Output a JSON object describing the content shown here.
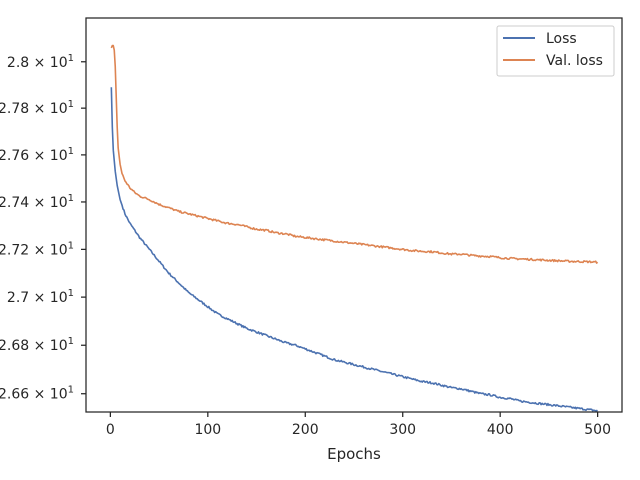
{
  "chart_data": {
    "type": "line",
    "title": "",
    "xlabel": "Epochs",
    "ylabel": "",
    "xlim": [
      -25,
      525
    ],
    "ylim": [
      26.525,
      28.19
    ],
    "yscale": "log",
    "grid": false,
    "legend_position": "top-right",
    "x_ticks": [
      {
        "value": 0,
        "label": "0"
      },
      {
        "value": 100,
        "label": "100"
      },
      {
        "value": 200,
        "label": "200"
      },
      {
        "value": 300,
        "label": "300"
      },
      {
        "value": 400,
        "label": "400"
      },
      {
        "value": 500,
        "label": "500"
      }
    ],
    "y_ticks": [
      {
        "value": 26.6,
        "mantissa": "2.66",
        "times": "×",
        "base": "10",
        "exp": "1"
      },
      {
        "value": 26.8,
        "mantissa": "2.68",
        "times": "×",
        "base": "10",
        "exp": "1"
      },
      {
        "value": 27.0,
        "mantissa": "2.7",
        "times": "×",
        "base": "10",
        "exp": "1"
      },
      {
        "value": 27.2,
        "mantissa": "2.72",
        "times": "×",
        "base": "10",
        "exp": "1"
      },
      {
        "value": 27.4,
        "mantissa": "2.74",
        "times": "×",
        "base": "10",
        "exp": "1"
      },
      {
        "value": 27.6,
        "mantissa": "2.76",
        "times": "×",
        "base": "10",
        "exp": "1"
      },
      {
        "value": 27.8,
        "mantissa": "2.78",
        "times": "×",
        "base": "10",
        "exp": "1"
      },
      {
        "value": 28.0,
        "mantissa": "2.8",
        "times": "×",
        "base": "10",
        "exp": "1"
      }
    ],
    "series": [
      {
        "name": "Loss",
        "color": "#4c72b0",
        "x": [
          1,
          2,
          3,
          5,
          7,
          10,
          15,
          20,
          30,
          40,
          50,
          60,
          70,
          80,
          90,
          100,
          110,
          120,
          130,
          140,
          150,
          160,
          170,
          180,
          190,
          200,
          210,
          220,
          230,
          240,
          250,
          260,
          270,
          280,
          290,
          300,
          310,
          320,
          330,
          340,
          350,
          360,
          370,
          380,
          390,
          400,
          410,
          420,
          430,
          440,
          450,
          460,
          470,
          480,
          490,
          500
        ],
        "values": [
          27.89,
          27.72,
          27.62,
          27.53,
          27.47,
          27.41,
          27.35,
          27.31,
          27.25,
          27.2,
          27.15,
          27.1,
          27.06,
          27.02,
          26.99,
          26.96,
          26.93,
          26.91,
          26.89,
          26.87,
          26.855,
          26.84,
          26.825,
          26.81,
          26.8,
          26.785,
          26.77,
          26.755,
          26.74,
          26.73,
          26.72,
          26.71,
          26.7,
          26.69,
          26.68,
          26.67,
          26.66,
          26.65,
          26.645,
          26.635,
          26.625,
          26.62,
          26.61,
          26.6,
          26.595,
          26.585,
          26.58,
          26.57,
          26.565,
          26.56,
          26.555,
          26.55,
          26.545,
          26.54,
          26.535,
          26.53
        ]
      },
      {
        "name": "Val. loss",
        "color": "#dd8452",
        "x": [
          1,
          2,
          3,
          4,
          5,
          6,
          7,
          8,
          10,
          12,
          15,
          20,
          25,
          30,
          40,
          50,
          60,
          70,
          80,
          90,
          100,
          110,
          120,
          130,
          140,
          150,
          160,
          170,
          180,
          190,
          200,
          210,
          220,
          230,
          240,
          250,
          260,
          270,
          280,
          290,
          300,
          310,
          320,
          330,
          340,
          350,
          360,
          370,
          380,
          390,
          400,
          410,
          420,
          430,
          440,
          450,
          460,
          470,
          480,
          490,
          500
        ],
        "values": [
          28.06,
          28.07,
          28.07,
          28.05,
          27.98,
          27.85,
          27.72,
          27.63,
          27.56,
          27.52,
          27.49,
          27.46,
          27.44,
          27.425,
          27.41,
          27.39,
          27.375,
          27.36,
          27.35,
          27.34,
          27.33,
          27.32,
          27.31,
          27.305,
          27.295,
          27.285,
          27.28,
          27.27,
          27.265,
          27.255,
          27.25,
          27.245,
          27.24,
          27.235,
          27.23,
          27.225,
          27.22,
          27.215,
          27.21,
          27.205,
          27.2,
          27.195,
          27.192,
          27.19,
          27.185,
          27.18,
          27.18,
          27.175,
          27.172,
          27.17,
          27.165,
          27.162,
          27.16,
          27.158,
          27.156,
          27.154,
          27.152,
          27.15,
          27.149,
          27.148,
          27.146
        ]
      }
    ]
  }
}
